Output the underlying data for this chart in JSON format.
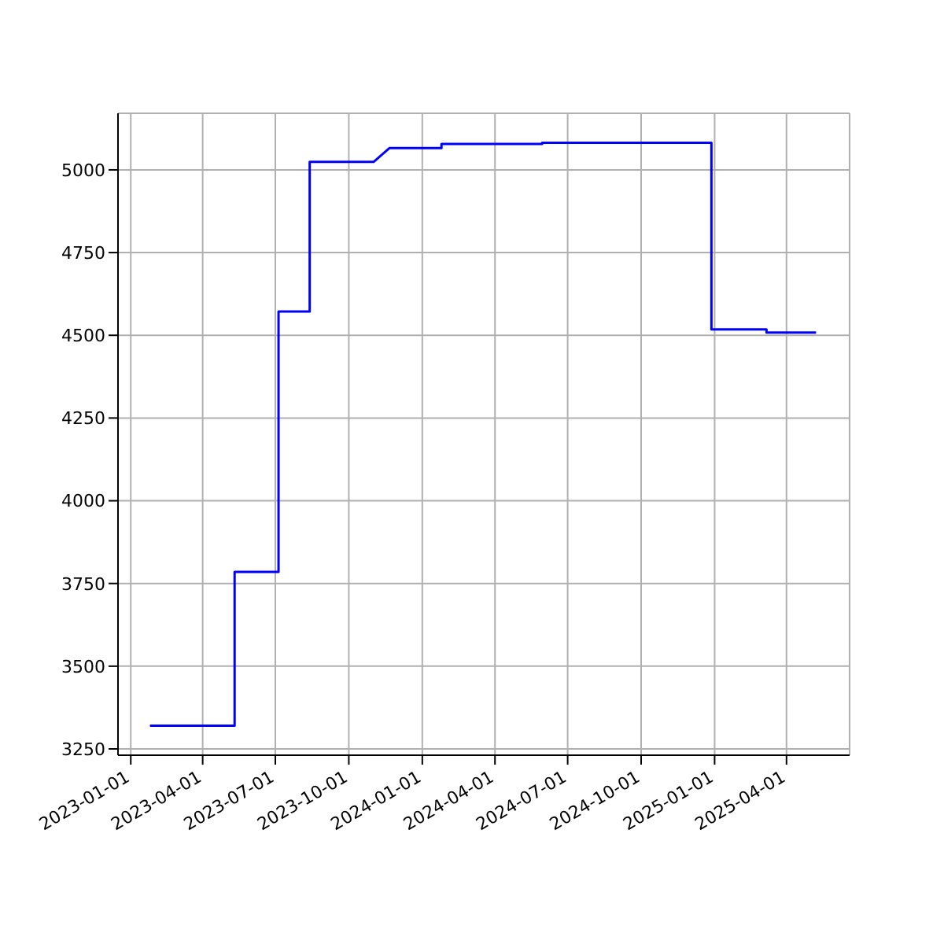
{
  "chart_data": {
    "type": "line",
    "x": [
      "2023-01-25",
      "2023-05-11",
      "2023-05-11",
      "2023-07-05",
      "2023-07-05",
      "2023-08-13",
      "2023-08-13",
      "2023-11-01",
      "2023-11-21",
      "2024-01-25",
      "2024-01-25",
      "2024-05-30",
      "2024-05-30",
      "2024-12-28",
      "2024-12-28",
      "2025-03-07",
      "2025-03-07",
      "2025-05-08"
    ],
    "series": [
      {
        "color": "#0000ff",
        "values": [
          3320,
          3320,
          3785,
          3785,
          4572,
          4572,
          5024,
          5024,
          5066,
          5066,
          5078,
          5078,
          5082,
          5082,
          4518,
          4518,
          4508,
          4508
        ]
      }
    ],
    "xlim": [
      "2022-12-16",
      "2025-06-19"
    ],
    "xticks": [
      "2023-01-01",
      "2023-04-01",
      "2023-07-01",
      "2023-10-01",
      "2024-01-01",
      "2024-04-01",
      "2024-07-01",
      "2024-10-01",
      "2025-01-01",
      "2025-04-01"
    ],
    "ylim": [
      3231,
      5171
    ],
    "yticks": [
      3250,
      3500,
      3750,
      4000,
      4250,
      4500,
      4750,
      5000
    ],
    "grid": true,
    "marker": "none",
    "line_style": "solid"
  }
}
